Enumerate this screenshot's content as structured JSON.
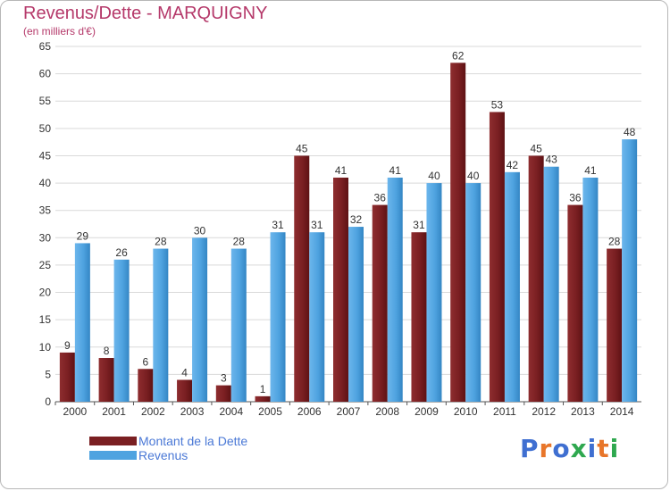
{
  "title": "Revenus/Dette - MARQUIGNY",
  "subtitle": "(en milliers d'€)",
  "legend": {
    "debt_label": "Montant de la Dette",
    "revenue_label": "Revenus"
  },
  "logo": {
    "letters": [
      "P",
      "r",
      "o",
      "x",
      "i",
      "t",
      "i"
    ]
  },
  "colors": {
    "debt": "#7a1f22",
    "revenue": "#4fa3e0",
    "title": "#b5396a",
    "legend_text": "#4a78d6",
    "logo": [
      "#3f6fd1",
      "#e8762a",
      "#3f6fd1",
      "#2fa84f",
      "#3f6fd1",
      "#e8762a",
      "#2fa84f"
    ]
  },
  "chart_data": {
    "type": "bar",
    "title": "Revenus/Dette - MARQUIGNY",
    "ylabel": "(en milliers d'€)",
    "xlabel": "",
    "ylim": [
      0,
      65
    ],
    "yticks": [
      0,
      5,
      10,
      15,
      20,
      25,
      30,
      35,
      40,
      45,
      50,
      55,
      60,
      65
    ],
    "grid": true,
    "legend_position": "bottom-left",
    "categories": [
      "2000",
      "2001",
      "2002",
      "2003",
      "2004",
      "2005",
      "2006",
      "2007",
      "2008",
      "2009",
      "2010",
      "2011",
      "2012",
      "2013",
      "2014"
    ],
    "series": [
      {
        "name": "Montant de la Dette",
        "values": [
          9,
          8,
          6,
          4,
          3,
          1,
          45,
          41,
          36,
          31,
          62,
          53,
          45,
          36,
          28
        ]
      },
      {
        "name": "Revenus",
        "values": [
          29,
          26,
          28,
          30,
          28,
          31,
          31,
          32,
          41,
          40,
          40,
          42,
          43,
          41,
          48
        ]
      }
    ]
  }
}
